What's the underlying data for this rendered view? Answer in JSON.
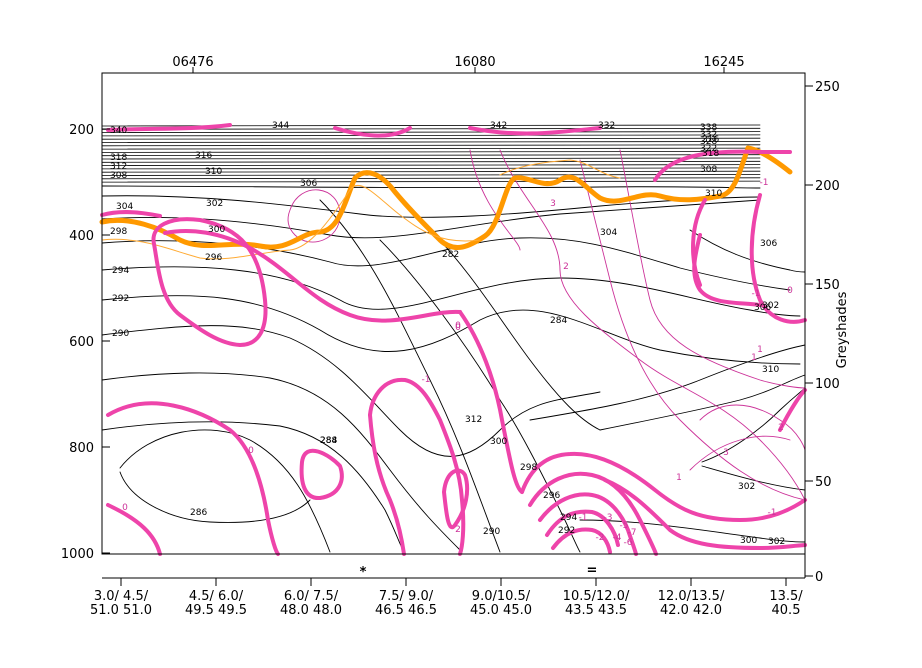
{
  "chart_data": {
    "type": "line",
    "title": "",
    "left_axis": {
      "ticks": [
        "200",
        "400",
        "600",
        "800",
        "1000"
      ],
      "range": [
        100,
        1050
      ]
    },
    "right_axis": {
      "label": "Greyshades",
      "ticks": [
        "0",
        "50",
        "100",
        "150",
        "200",
        "250"
      ],
      "range": [
        0,
        260
      ]
    },
    "top_axis": {
      "ticks": [
        "06476",
        "16080",
        "16245"
      ]
    },
    "bottom_axis": {
      "ticks": [
        {
          "line1": "3.0/ 4.5/",
          "line2": "51.0 51.0"
        },
        {
          "line1": "4.5/ 6.0/",
          "line2": "49.5 49.5"
        },
        {
          "line1": "6.0/ 7.5/",
          "line2": "48.0 48.0"
        },
        {
          "line1": "7.5/ 9.0/",
          "line2": "46.5 46.5"
        },
        {
          "line1": "9.0/10.5/",
          "line2": "45.0 45.0"
        },
        {
          "line1": "10.5/12.0/",
          "line2": "43.5 43.5"
        },
        {
          "line1": "12.0/13.5/",
          "line2": "42.0 42.0"
        },
        {
          "line1": "13.5/",
          "line2": "40.5"
        }
      ]
    },
    "markers": [
      {
        "name": "cyan-star",
        "symbol": "*",
        "color": "#33cccc"
      },
      {
        "name": "yellow-marker",
        "symbol": "=",
        "color": "#e6c800"
      }
    ],
    "isentrope_labels": [
      "340",
      "344",
      "342",
      "332",
      "338",
      "332",
      "328",
      "322",
      "316",
      "318",
      "312",
      "310",
      "308",
      "306",
      "304",
      "302",
      "300",
      "298",
      "296",
      "294",
      "292",
      "290",
      "288",
      "286",
      "284",
      "282",
      "284",
      "302",
      "304",
      "306",
      "308",
      "310",
      "312",
      "300",
      "298",
      "296",
      "294",
      "292",
      "290",
      "302",
      "300",
      "302",
      "306",
      "310",
      "318",
      "316"
    ],
    "pv_labels": [
      "-1",
      "0",
      "-1",
      "0",
      "0",
      "-1",
      "-2",
      "-3",
      "-4",
      "-5",
      "-6",
      "-7",
      "1",
      "2",
      "3",
      "2",
      "1",
      "0",
      "-1",
      "2",
      "3",
      "0",
      "1",
      "-1"
    ],
    "colors": {
      "isentrope": "#000000",
      "pv_thin": "#cc3399",
      "pv_zero": "#ee44aa",
      "tropopause": "#ff9900",
      "tropopause_thin": "#ffaa33",
      "axis": "#000000"
    }
  }
}
